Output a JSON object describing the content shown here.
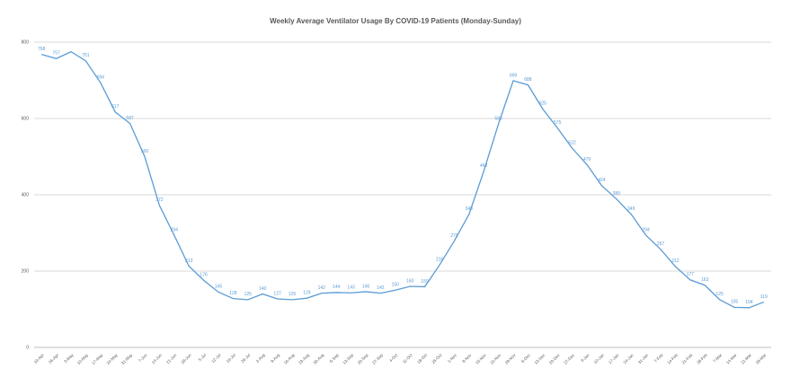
{
  "chart_data": {
    "type": "line",
    "title": "Weekly Average Ventilator Usage By COVID-19 Patients (Monday-Sunday)",
    "categories": [
      "19-Apr",
      "26-Apr",
      "3-May",
      "10-May",
      "17-May",
      "24-May",
      "31-May",
      "7-Jun",
      "14-Jun",
      "21-Jun",
      "28-Jun",
      "5-Jul",
      "12-Jul",
      "19-Jul",
      "26-Jul",
      "2-Aug",
      "9-Aug",
      "16-Aug",
      "23-Aug",
      "30-Aug",
      "6-Sep",
      "13-Sep",
      "20-Sep",
      "27-Sep",
      "4-Oct",
      "11-Oct",
      "18-Oct",
      "25-Oct",
      "1-Nov",
      "8-Nov",
      "15-Nov",
      "22-Nov",
      "29-Nov",
      "6-Dec",
      "13-Dec",
      "20-Dec",
      "27-Dec",
      "3-Jan",
      "10-Jan",
      "17-Jan",
      "24-Jan",
      "31-Jan",
      "7-Feb",
      "14-Feb",
      "21-Feb",
      "28-Feb",
      "7-Mar",
      "14-Mar",
      "21-Mar",
      "28-Mar"
    ],
    "values": [
      768,
      757,
      775,
      751,
      694,
      617,
      587,
      500,
      372,
      294,
      213,
      176,
      145,
      128,
      125,
      140,
      127,
      125,
      129,
      142,
      144,
      143,
      146,
      142,
      150,
      160,
      159,
      216,
      279,
      349,
      462,
      586,
      699,
      688,
      625,
      575,
      522,
      479,
      424,
      389,
      349,
      294,
      257,
      212,
      177,
      163,
      125,
      105,
      104,
      119
    ],
    "value_labels": [
      "768",
      "757",
      null,
      "751",
      "694",
      "617",
      "587",
      "500",
      "372",
      "294",
      "213",
      "176",
      "145",
      "128",
      "125",
      "140",
      "127",
      "125",
      "129",
      "142",
      "144",
      "143",
      "146",
      "142",
      "150",
      "160",
      "159",
      "216",
      "279",
      "349",
      "462",
      "586",
      "699",
      "688",
      "625",
      "575",
      "522",
      "479",
      "424",
      "389",
      "349",
      "294",
      "257",
      "212",
      "177",
      "163",
      "125",
      "105",
      "104",
      "119"
    ],
    "color": "#5b9bd5",
    "ylim": [
      0,
      800
    ],
    "yticks": [
      0,
      200,
      400,
      600,
      800
    ],
    "grid": true
  }
}
